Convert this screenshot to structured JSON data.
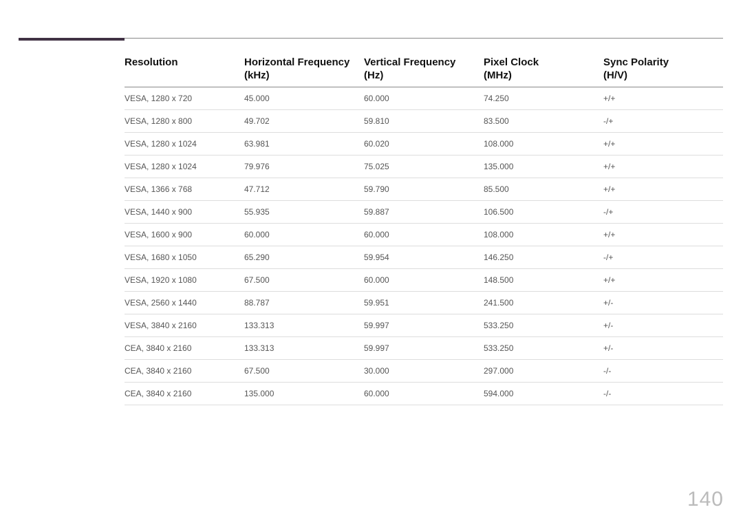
{
  "page_number": "140",
  "accent_bar_color": "#403244",
  "table": {
    "columns": [
      {
        "title": "Resolution",
        "sub": ""
      },
      {
        "title": "Horizontal Frequency",
        "sub": "(kHz)"
      },
      {
        "title": "Vertical Frequency",
        "sub": "(Hz)"
      },
      {
        "title": "Pixel Clock",
        "sub": "(MHz)"
      },
      {
        "title": "Sync Polarity",
        "sub": "(H/V)"
      }
    ],
    "rows": [
      [
        "VESA, 1280 x 720",
        "45.000",
        "60.000",
        "74.250",
        "+/+"
      ],
      [
        "VESA, 1280 x 800",
        "49.702",
        "59.810",
        "83.500",
        "-/+"
      ],
      [
        "VESA, 1280 x 1024",
        "63.981",
        "60.020",
        "108.000",
        "+/+"
      ],
      [
        "VESA, 1280 x 1024",
        "79.976",
        "75.025",
        "135.000",
        "+/+"
      ],
      [
        "VESA, 1366 x 768",
        "47.712",
        "59.790",
        "85.500",
        "+/+"
      ],
      [
        "VESA, 1440 x 900",
        "55.935",
        "59.887",
        "106.500",
        "-/+"
      ],
      [
        "VESA, 1600 x 900",
        "60.000",
        "60.000",
        "108.000",
        "+/+"
      ],
      [
        "VESA, 1680 x 1050",
        "65.290",
        "59.954",
        "146.250",
        "-/+"
      ],
      [
        "VESA, 1920 x 1080",
        "67.500",
        "60.000",
        "148.500",
        "+/+"
      ],
      [
        "VESA, 2560 x 1440",
        "88.787",
        "59.951",
        "241.500",
        "+/-"
      ],
      [
        "VESA, 3840 x 2160",
        "133.313",
        "59.997",
        "533.250",
        "+/-"
      ],
      [
        "CEA, 3840 x 2160",
        "133.313",
        "59.997",
        "533.250",
        "+/-"
      ],
      [
        "CEA, 3840 x 2160",
        "67.500",
        "30.000",
        "297.000",
        "-/-"
      ],
      [
        "CEA, 3840 x 2160",
        "135.000",
        "60.000",
        "594.000",
        "-/-"
      ]
    ]
  }
}
